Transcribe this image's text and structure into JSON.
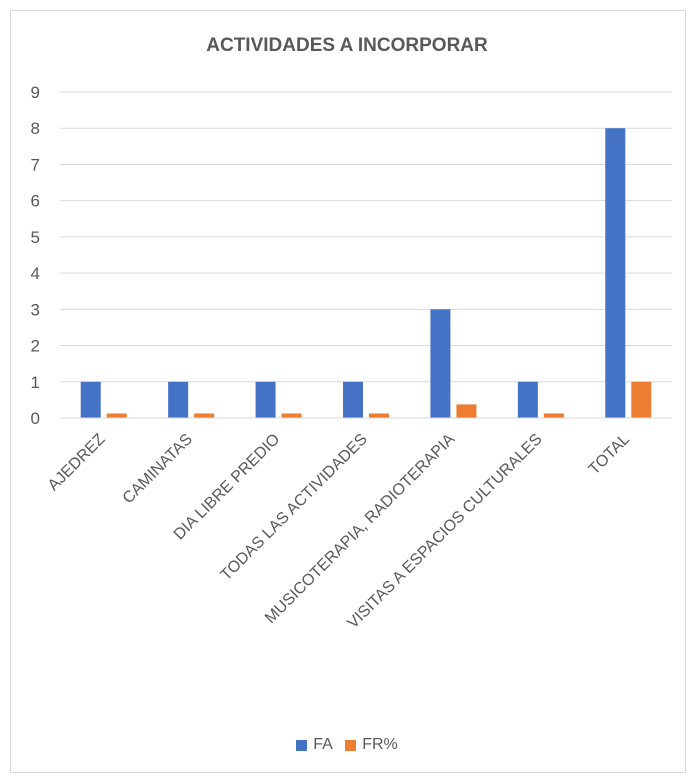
{
  "chart_data": {
    "type": "bar",
    "title": "ACTIVIDADES A INCORPORAR",
    "categories": [
      "AJEDREZ",
      "CAMINATAS",
      "DIA LIBRE PREDIO",
      "TODAS LAS ACTIVIDADES",
      "MUSICOTERAPIA, RADIOTERAPIA",
      "VISITAS A ESPACIOS CULTURALES",
      "TOTAL"
    ],
    "series": [
      {
        "name": "FA",
        "values": [
          1,
          1,
          1,
          1,
          3,
          1,
          8
        ],
        "color": "#4472c4"
      },
      {
        "name": "FR%",
        "values": [
          0.125,
          0.125,
          0.125,
          0.125,
          0.375,
          0.125,
          1
        ],
        "color": "#ed7d31"
      }
    ],
    "yticks": [
      0,
      1,
      2,
      3,
      4,
      5,
      6,
      7,
      8,
      9
    ],
    "ylim": [
      0,
      9
    ],
    "grid": true,
    "legend": "bottom"
  }
}
